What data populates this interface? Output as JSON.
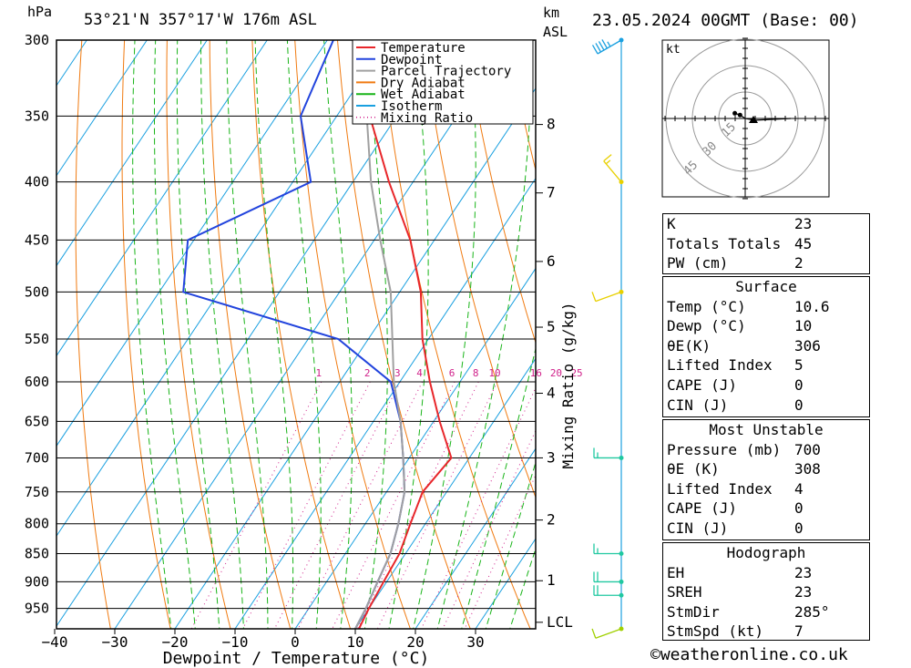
{
  "header": {
    "location": "53°21'N  357°17'W  176m  ASL",
    "run": "23.05.2024  00GMT  (Base: 00)",
    "hpa_unit": "hPa",
    "km_unit": "km",
    "asl_unit": "ASL"
  },
  "legend": [
    {
      "label": "Temperature",
      "color": "#e8262a",
      "style": "solid"
    },
    {
      "label": "Dewpoint",
      "color": "#2244dd",
      "style": "solid"
    },
    {
      "label": "Parcel Trajectory",
      "color": "#a0a0a0",
      "style": "solid"
    },
    {
      "label": "Dry Adiabat",
      "color": "#f07a10",
      "style": "solid"
    },
    {
      "label": "Wet Adiabat",
      "color": "#18b418",
      "style": "solid"
    },
    {
      "label": "Isotherm",
      "color": "#1aa0e0",
      "style": "solid"
    },
    {
      "label": "Mixing Ratio",
      "color": "#d0208a",
      "style": "dotted"
    }
  ],
  "chart_data": {
    "type": "line",
    "xlabel": "Dewpoint / Temperature (°C)",
    "ylabel": "hPa",
    "mixing_ratio_label": "Mixing Ratio (g/kg)",
    "x_ticks": [
      -40,
      -30,
      -20,
      -10,
      0,
      10,
      20,
      30
    ],
    "pressure_levels": [
      300,
      350,
      400,
      450,
      500,
      550,
      600,
      650,
      700,
      750,
      800,
      850,
      900,
      950
    ],
    "height_km": [
      {
        "km": "8",
        "p": 356
      },
      {
        "km": "7",
        "p": 409
      },
      {
        "km": "6",
        "p": 470
      },
      {
        "km": "5",
        "p": 537
      },
      {
        "km": "4",
        "p": 614
      },
      {
        "km": "3",
        "p": 700
      },
      {
        "km": "2",
        "p": 794
      },
      {
        "km": "1",
        "p": 898
      },
      {
        "km": "LCL",
        "p": 977
      }
    ],
    "mixing_ratio_labels": [
      "1",
      "2",
      "3",
      "4",
      "6",
      "8",
      "10",
      "16",
      "20",
      "25"
    ],
    "mixing_ratio_values": [
      1,
      2,
      3,
      4,
      6,
      8,
      10,
      16,
      20,
      25
    ],
    "series": [
      {
        "name": "Temperature",
        "color": "#e8262a",
        "p": [
          300,
          350,
          400,
          450,
          500,
          550,
          600,
          650,
          700,
          750,
          800,
          850,
          900,
          950,
          990
        ],
        "t": [
          -42,
          -44.5,
          -34,
          -24,
          -16.5,
          -11,
          -5,
          1,
          7,
          6,
          7.5,
          9,
          9.5,
          10,
          10.6
        ]
      },
      {
        "name": "Dewpoint",
        "color": "#2244dd",
        "p": [
          300,
          350,
          400,
          450,
          500,
          550,
          600,
          650,
          700,
          750,
          800,
          850,
          900,
          950,
          990
        ],
        "t": [
          -59,
          -56,
          -47,
          -61,
          -56,
          -25,
          -11.5,
          -5.5,
          -1,
          3,
          5.5,
          7.5,
          8.5,
          9.5,
          10
        ]
      },
      {
        "name": "Parcel Trajectory",
        "color": "#a0a0a0",
        "p": [
          300,
          350,
          400,
          450,
          500,
          550,
          600,
          650,
          700,
          750,
          800,
          850,
          900,
          950,
          990
        ],
        "t": [
          -53,
          -45,
          -37,
          -29,
          -21.5,
          -16,
          -11,
          -5.5,
          -1,
          3,
          5.5,
          7.5,
          8.5,
          9.5,
          10
        ]
      }
    ],
    "wind_barbs": [
      {
        "p": 300,
        "dir": 240,
        "kt": 45,
        "color": "#1aa0e0"
      },
      {
        "p": 400,
        "dir": 320,
        "kt": 15,
        "color": "#e8d000"
      },
      {
        "p": 500,
        "dir": 250,
        "kt": 10,
        "color": "#e8d000"
      },
      {
        "p": 700,
        "dir": 270,
        "kt": 15,
        "color": "#20c8a0"
      },
      {
        "p": 850,
        "dir": 270,
        "kt": 15,
        "color": "#20c8a0"
      },
      {
        "p": 900,
        "dir": 270,
        "kt": 20,
        "color": "#20c8a0"
      },
      {
        "p": 925,
        "dir": 270,
        "kt": 20,
        "color": "#20c8a0"
      },
      {
        "p": 990,
        "dir": 250,
        "kt": 10,
        "color": "#a0d000"
      }
    ]
  },
  "hodograph": {
    "unit": "kt",
    "rings": [
      "15",
      "30",
      "45"
    ],
    "points_uv": [
      [
        -6,
        3
      ],
      [
        -3,
        2
      ],
      [
        0,
        0
      ],
      [
        6,
        -1
      ]
    ]
  },
  "indices": [
    {
      "label": "K",
      "value": "23"
    },
    {
      "label": "Totals Totals",
      "value": "45"
    },
    {
      "label": "PW (cm)",
      "value": "2"
    }
  ],
  "surface": {
    "title": "Surface",
    "rows": [
      {
        "label": "Temp (°C)",
        "value": "10.6"
      },
      {
        "label": "Dewp (°C)",
        "value": "10"
      },
      {
        "label": "θE(K)",
        "value": "306"
      },
      {
        "label": "Lifted Index",
        "value": "5"
      },
      {
        "label": "CAPE (J)",
        "value": "0"
      },
      {
        "label": "CIN (J)",
        "value": "0"
      }
    ]
  },
  "most_unstable": {
    "title": "Most Unstable",
    "rows": [
      {
        "label": "Pressure (mb)",
        "value": "700"
      },
      {
        "label": "θE (K)",
        "value": "308"
      },
      {
        "label": "Lifted Index",
        "value": "4"
      },
      {
        "label": "CAPE (J)",
        "value": "0"
      },
      {
        "label": "CIN (J)",
        "value": "0"
      }
    ]
  },
  "hodograph_table": {
    "title": "Hodograph",
    "rows": [
      {
        "label": "EH",
        "value": "23"
      },
      {
        "label": "SREH",
        "value": "23"
      },
      {
        "label": "StmDir",
        "value": "285°"
      },
      {
        "label": "StmSpd (kt)",
        "value": "7"
      }
    ]
  },
  "copyright": "©weatheronline.co.uk"
}
